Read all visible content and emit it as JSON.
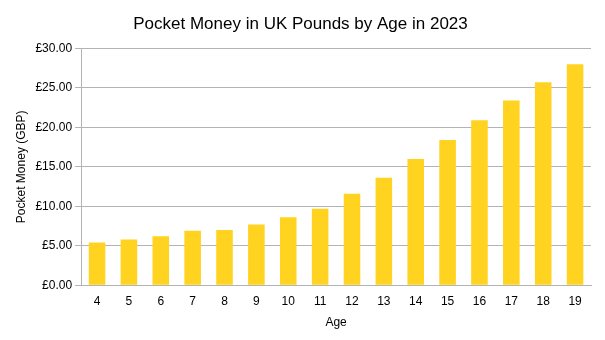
{
  "chart_data": {
    "type": "bar",
    "title": "Pocket Money in UK Pounds by Age in 2023",
    "x_label": "Age",
    "y_label": "Pocket Money (GBP)",
    "categories": [
      "4",
      "5",
      "6",
      "7",
      "8",
      "9",
      "10",
      "11",
      "12",
      "13",
      "14",
      "15",
      "16",
      "17",
      "18",
      "19"
    ],
    "values": [
      5.4,
      5.8,
      6.2,
      6.9,
      7.0,
      7.7,
      8.6,
      9.7,
      11.6,
      13.6,
      16.0,
      18.4,
      20.9,
      23.4,
      25.7,
      28.0
    ],
    "color": "#ffd320",
    "ylim": [
      0,
      30
    ],
    "yticks": [
      {
        "value": 0,
        "label": "£0.00"
      },
      {
        "value": 5,
        "label": "£5.00"
      },
      {
        "value": 10,
        "label": "£10.00"
      },
      {
        "value": 15,
        "label": "£15.00"
      },
      {
        "value": 20,
        "label": "£20.00"
      },
      {
        "value": 25,
        "label": "£25.00"
      },
      {
        "value": 30,
        "label": "£30.00"
      }
    ],
    "grid": true
  }
}
